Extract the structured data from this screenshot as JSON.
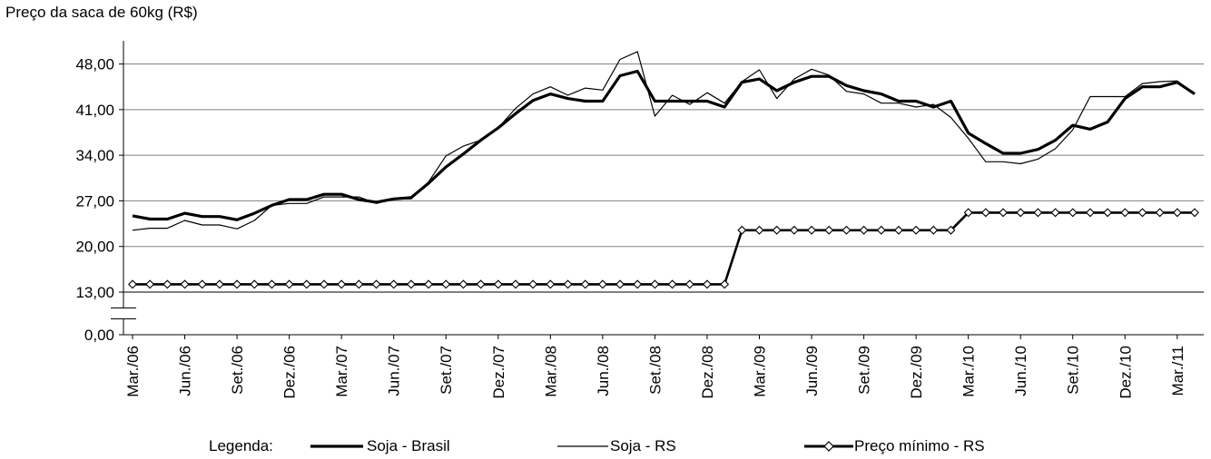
{
  "chart_data": {
    "type": "line",
    "ylabel": "Preço da saca de 60kg (R$)",
    "yticks": [
      "48,00",
      "41,00",
      "34,00",
      "27,00",
      "20,00",
      "13,00",
      "0,00"
    ],
    "ytick_values": [
      48,
      41,
      34,
      27,
      20,
      13,
      0
    ],
    "ylim": [
      13,
      51
    ],
    "axis_break": true,
    "grid": true,
    "legend_title": "Legenda:",
    "legend_position": "bottom",
    "x_tick_labels": [
      "Mar./06",
      "Jun./06",
      "Set./06",
      "Dez./06",
      "Mar./07",
      "Jun./07",
      "Set./07",
      "Dez./07",
      "Mar./08",
      "Jun./08",
      "Set./08",
      "Dez./08",
      "Mar./09",
      "Jun./09",
      "Set./09",
      "Dez./09",
      "Mar./10",
      "Jun./10",
      "Set./10",
      "Dez./10",
      "Mar./11"
    ],
    "x_start": "2006-03",
    "x_end": "2011-03",
    "series": [
      {
        "name": "Soja - Brasil",
        "style": "thick",
        "color": "#000000",
        "values": [
          24.7,
          24.2,
          24.2,
          25.1,
          24.6,
          24.6,
          24.1,
          25.1,
          26.3,
          27.2,
          27.2,
          28.0,
          28.0,
          27.2,
          26.8,
          27.3,
          27.5,
          29.7,
          32.2,
          34.2,
          36.3,
          38.2,
          40.4,
          42.4,
          43.4,
          42.7,
          42.3,
          42.3,
          46.2,
          46.9,
          42.3,
          42.3,
          42.3,
          42.3,
          41.4,
          45.2,
          45.7,
          43.9,
          45.2,
          46.1,
          46.1,
          44.7,
          43.9,
          43.4,
          42.3,
          42.3,
          41.4,
          42.3,
          37.4,
          35.8,
          34.3,
          34.3,
          34.9,
          36.3,
          38.6,
          38.0,
          39.1,
          42.7,
          44.5,
          44.5,
          45.2,
          43.4
        ]
      },
      {
        "name": "Soja - RS",
        "style": "thin",
        "color": "#000000",
        "values": [
          22.5,
          22.8,
          22.8,
          24.0,
          23.3,
          23.3,
          22.7,
          24.0,
          26.3,
          26.6,
          26.6,
          27.6,
          27.6,
          27.6,
          26.6,
          27.3,
          27.3,
          29.9,
          33.9,
          35.4,
          36.3,
          38.2,
          41.2,
          43.4,
          44.5,
          43.2,
          44.3,
          44.0,
          48.7,
          49.9,
          40.0,
          43.2,
          41.8,
          43.6,
          42.0,
          45.3,
          47.1,
          42.7,
          45.7,
          47.2,
          46.3,
          43.8,
          43.4,
          42.0,
          42.0,
          41.4,
          41.8,
          39.8,
          36.6,
          33.0,
          33.0,
          32.7,
          33.4,
          35.0,
          37.9,
          43.0,
          43.0,
          43.0,
          45.0,
          45.3,
          45.4,
          43.4
        ]
      },
      {
        "name": "Preço mínimo - RS",
        "style": "diamond",
        "color": "#000000",
        "values": [
          14.2,
          14.2,
          14.2,
          14.2,
          14.2,
          14.2,
          14.2,
          14.2,
          14.2,
          14.2,
          14.2,
          14.2,
          14.2,
          14.2,
          14.2,
          14.2,
          14.2,
          14.2,
          14.2,
          14.2,
          14.2,
          14.2,
          14.2,
          14.2,
          14.2,
          14.2,
          14.2,
          14.2,
          14.2,
          14.2,
          14.2,
          14.2,
          14.2,
          14.2,
          14.2,
          22.5,
          22.5,
          22.5,
          22.5,
          22.5,
          22.5,
          22.5,
          22.5,
          22.5,
          22.5,
          22.5,
          22.5,
          22.5,
          25.2,
          25.2,
          25.2,
          25.2,
          25.2,
          25.2,
          25.2,
          25.2,
          25.2,
          25.2,
          25.2,
          25.2,
          25.2,
          25.2
        ]
      }
    ]
  }
}
